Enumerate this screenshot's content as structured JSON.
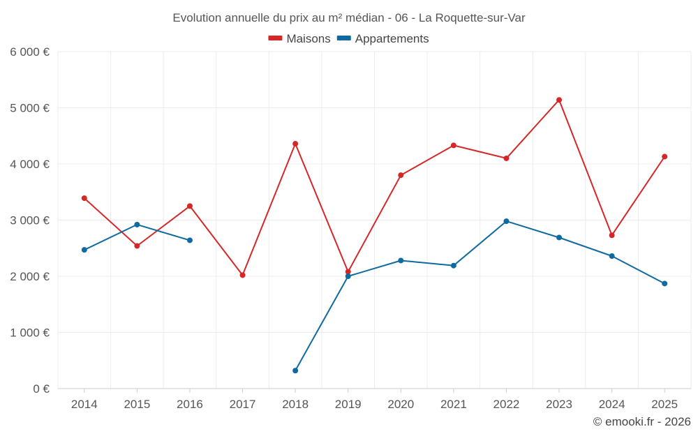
{
  "chart_data": {
    "type": "line",
    "title": "Evolution annuelle du prix au m² médian - 06 - La Roquette-sur-Var",
    "categories": [
      "2014",
      "2015",
      "2016",
      "2017",
      "2018",
      "2019",
      "2020",
      "2021",
      "2022",
      "2023",
      "2024",
      "2025"
    ],
    "series": [
      {
        "name": "Maisons",
        "color": "#d62728",
        "values": [
          3390,
          2540,
          3250,
          2020,
          4360,
          2080,
          3800,
          4330,
          4100,
          5140,
          2730,
          4130
        ]
      },
      {
        "name": "Appartements",
        "color": "#0e6aa0",
        "values": [
          2470,
          2920,
          2640,
          null,
          320,
          2000,
          2280,
          2190,
          2980,
          2690,
          2360,
          1870
        ]
      }
    ],
    "y_ticks": [
      {
        "value": 0,
        "label": "0 €"
      },
      {
        "value": 1000,
        "label": "1 000 €"
      },
      {
        "value": 2000,
        "label": "2 000 €"
      },
      {
        "value": 3000,
        "label": "3 000 €"
      },
      {
        "value": 4000,
        "label": "4 000 €"
      },
      {
        "value": 5000,
        "label": "5 000 €"
      },
      {
        "value": 6000,
        "label": "6 000 €"
      }
    ],
    "ylim": [
      0,
      6000
    ],
    "xlabel": "",
    "ylabel": "",
    "grid": true,
    "legend": "top-center",
    "credit": "© emooki.fr - 2026"
  }
}
